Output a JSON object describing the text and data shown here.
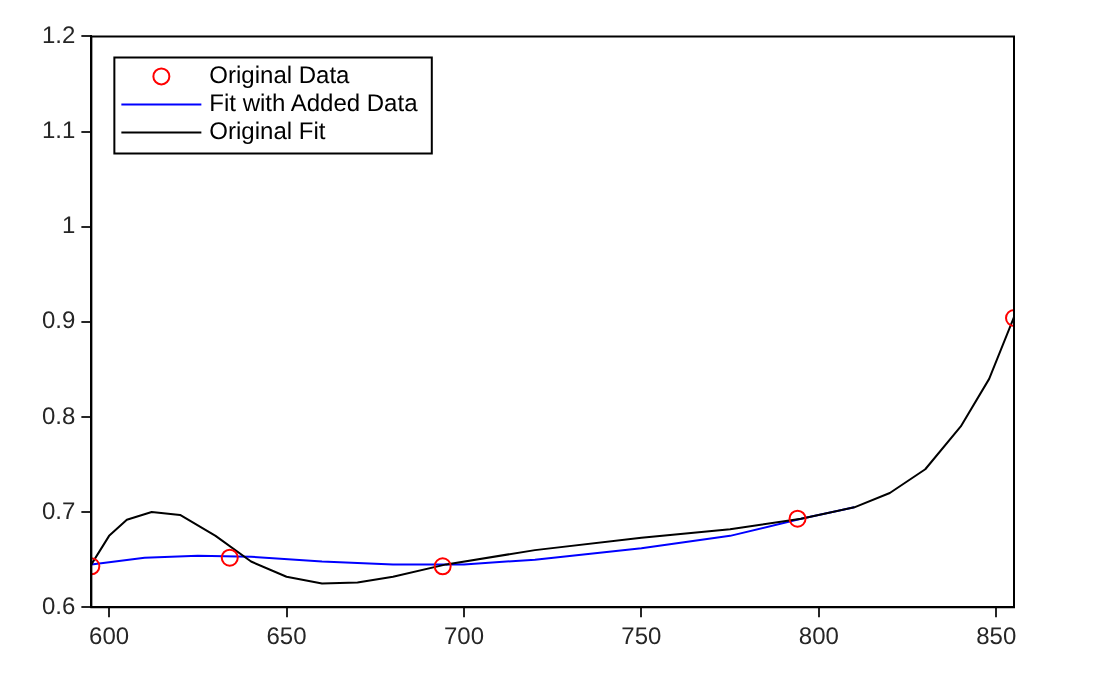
{
  "chart_data": {
    "type": "line",
    "xlim": [
      595,
      855
    ],
    "xticks": [
      600,
      650,
      700,
      750,
      800,
      850
    ],
    "ylim": [
      0.6,
      1.2
    ],
    "yticks": [
      0.6,
      0.7,
      0.8,
      0.9,
      1,
      1.1,
      1.2
    ],
    "grid": false,
    "legend": "top left",
    "series": [
      {
        "name": "Original Data",
        "type": "scatter",
        "marker": "circle",
        "color": "#ff0000",
        "x": [
          595,
          634,
          694,
          794,
          855
        ],
        "values": [
          0.643,
          0.652,
          0.643,
          0.693,
          0.904
        ]
      },
      {
        "name": "Fit with Added Data",
        "marker": "none",
        "color": "#0000ff",
        "x": [
          595,
          610,
          625,
          640,
          660,
          680,
          700,
          720,
          750,
          775,
          795,
          810
        ],
        "values": [
          0.645,
          0.652,
          0.654,
          0.653,
          0.648,
          0.645,
          0.645,
          0.65,
          0.662,
          0.675,
          0.693,
          0.705
        ]
      },
      {
        "name": "Original Fit",
        "marker": "none",
        "color": "#000000",
        "x": [
          595,
          600,
          605,
          612,
          620,
          630,
          640,
          650,
          660,
          670,
          680,
          695,
          720,
          750,
          775,
          795,
          810,
          820,
          830,
          840,
          848,
          855
        ],
        "values": [
          0.645,
          0.675,
          0.692,
          0.7,
          0.697,
          0.675,
          0.648,
          0.632,
          0.625,
          0.626,
          0.632,
          0.645,
          0.66,
          0.673,
          0.682,
          0.693,
          0.705,
          0.72,
          0.745,
          0.79,
          0.84,
          0.905
        ]
      }
    ]
  }
}
